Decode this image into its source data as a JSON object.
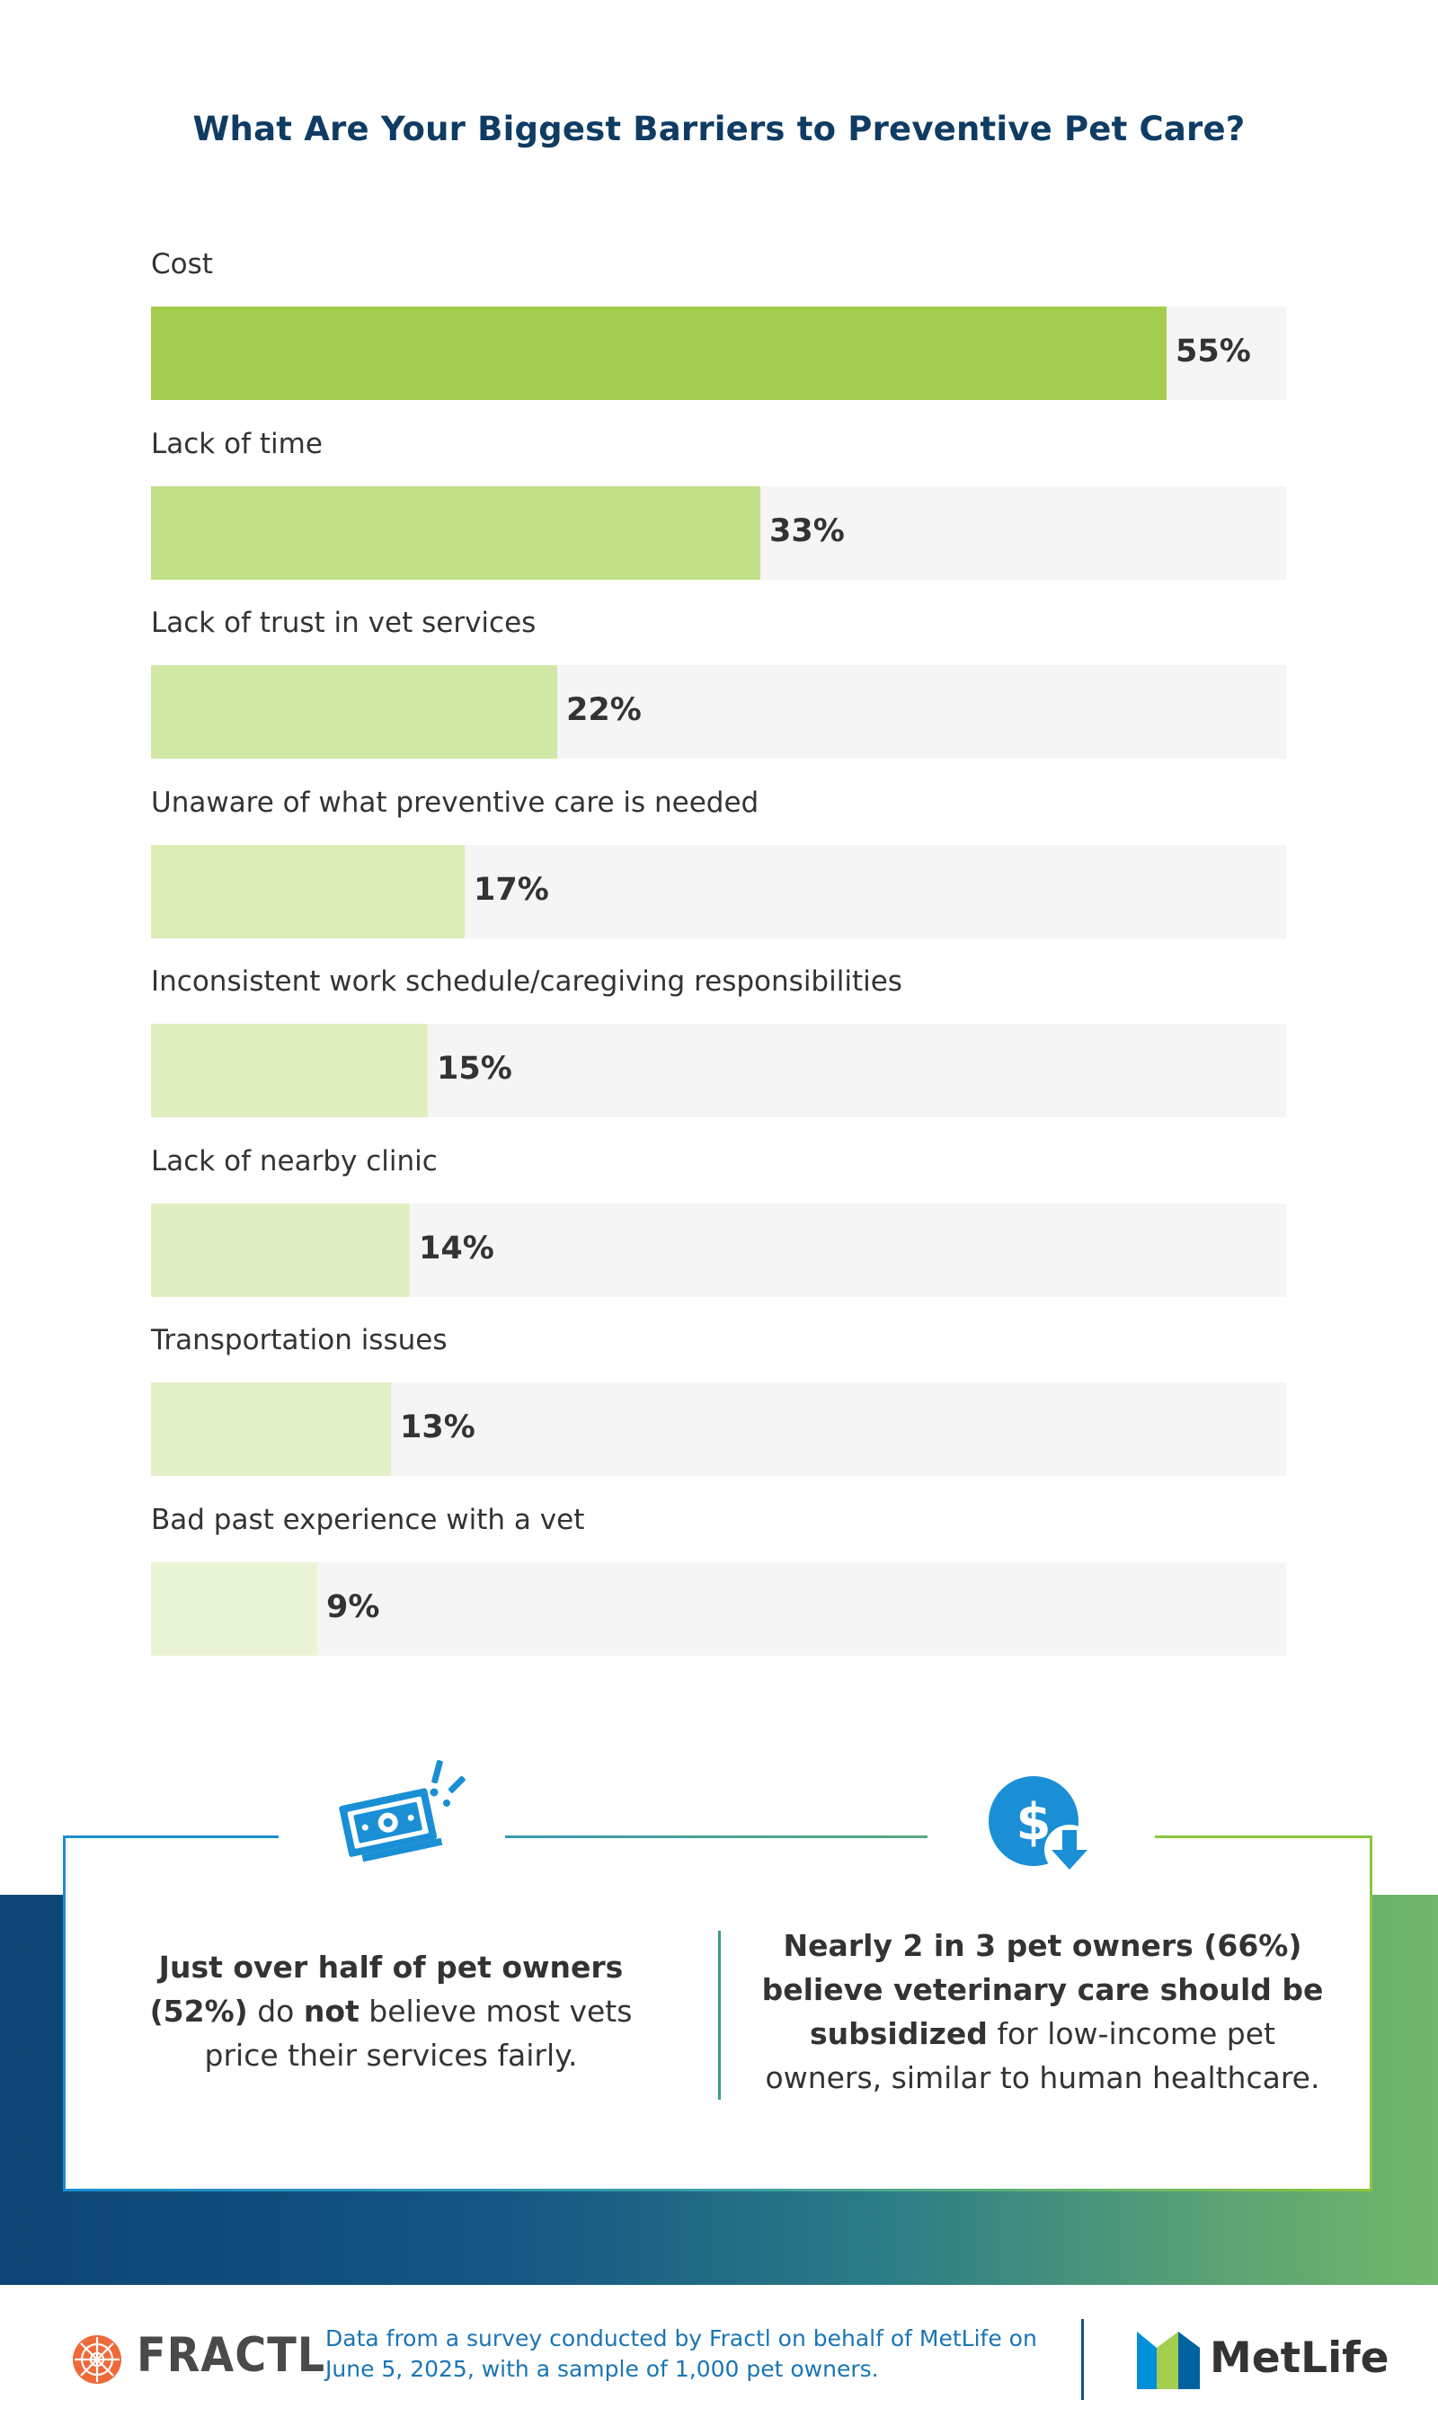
{
  "chart_data": {
    "type": "bar",
    "orientation": "horizontal",
    "title": "What Are Your Biggest Barriers to Preventive Pet Care?",
    "categories": [
      "Cost",
      "Lack of time",
      "Lack of trust in vet services",
      "Unaware of what preventive care is needed",
      "Inconsistent work schedule/caregiving responsibilities",
      "Lack of nearby clinic",
      "Transportation issues",
      "Bad past experience with a vet"
    ],
    "values": [
      55,
      33,
      22,
      17,
      15,
      14,
      13,
      9
    ],
    "value_labels": [
      "55%",
      "33%",
      "22%",
      "17%",
      "15%",
      "14%",
      "13%",
      "9%"
    ],
    "xlim": [
      0,
      61.5
    ],
    "unit": "%",
    "grid": false,
    "legend": "none",
    "colors": [
      "#a4cd4f",
      "#c2e086",
      "#d2e8a6",
      "#dcedb8",
      "#e0efbf",
      "#e1f0c2",
      "#e4f1c8",
      "#e9f4d4"
    ],
    "track_color": "#f5f5f5"
  },
  "stats": {
    "left": {
      "line1": "Just over half of pet owners",
      "line2_bold": "(52%)",
      "line2_mid": " do ",
      "line2_not": "not",
      "line2_end": " believe most vets",
      "line3": "price their services fairly."
    },
    "right": {
      "line1": "Nearly 2 in 3 pet owners (66%)",
      "line2": "believe veterinary care should be",
      "line3_bold": "subsidized",
      "line3_end": " for low-income pet",
      "line4": "owners, similar to human healthcare."
    }
  },
  "icons": {
    "left": "money-icon",
    "right": "dollar-down-icon"
  },
  "footer": {
    "fractl_logo": "FRACTL",
    "note_line1": "Data from a survey conducted by Fractl on behalf of MetLife on",
    "note_line2": "June 5, 2025, with a sample of 1,000 pet owners.",
    "metlife_logo": "MetLife"
  },
  "colors": {
    "title": "#0f3c63",
    "accent_blue": "#1e8ecf",
    "accent_green": "#8cc63f",
    "footer_text": "#1a75b5"
  }
}
